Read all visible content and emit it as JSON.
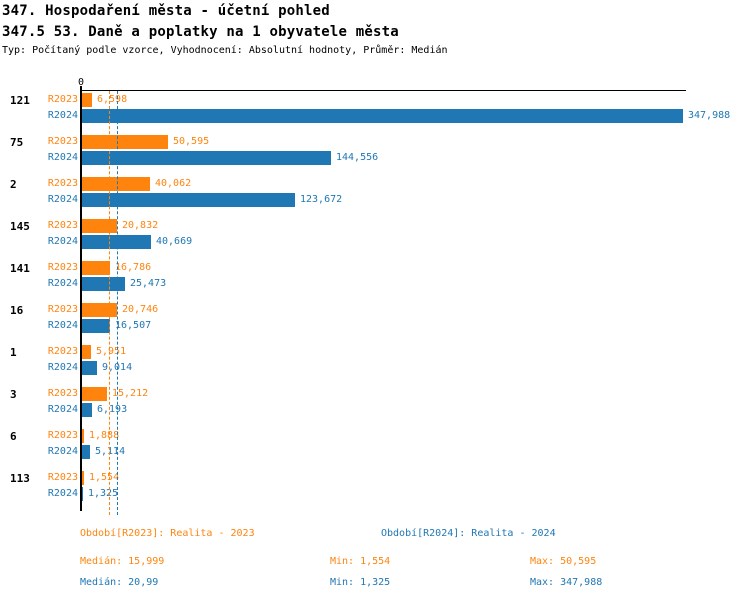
{
  "header": {
    "title1": "347. Hospodaření města - účetní pohled",
    "title2": "347.5 53. Daně a poplatky na 1 obyvatele města",
    "meta": "Typ: Počítaný podle vzorce, Vyhodnocení: Absolutní hodnoty, Průměr: Medián"
  },
  "colors": {
    "r2023": "#ff840e",
    "r2024": "#1f77b4",
    "axis": "#000000"
  },
  "chart_data": {
    "type": "bar",
    "orientation": "horizontal",
    "title": "347.5 53. Daně a poplatky na 1 obyvatele města",
    "zero_label": "0",
    "categories": [
      "121",
      "75",
      "2",
      "145",
      "141",
      "16",
      "1",
      "3",
      "6",
      "113"
    ],
    "series": [
      {
        "name": "R2023",
        "color": "#ff840e",
        "values": [
          6598,
          50595,
          40062,
          20832,
          16786,
          20746,
          5951,
          15212,
          1888,
          1554
        ],
        "labels": [
          "6,598",
          "50,595",
          "40,062",
          "20,832",
          "16,786",
          "20,746",
          "5,951",
          "15,212",
          "1,888",
          "1,554"
        ]
      },
      {
        "name": "R2024",
        "color": "#1f77b4",
        "values": [
          347988,
          144556,
          123672,
          40669,
          25473,
          16507,
          9014,
          6193,
          5114,
          1325
        ],
        "labels": [
          "347,988",
          "144,556",
          "123,672",
          "40,669",
          "25,473",
          "16,507",
          "9,014",
          "6,193",
          "5,114",
          "1,325"
        ]
      }
    ],
    "xlim": [
      0,
      350000
    ],
    "median_lines": [
      {
        "series": "R2023",
        "value": 15999,
        "color": "#ff840e"
      },
      {
        "series": "R2024",
        "value": 20990,
        "color": "#1f77b4"
      }
    ],
    "grid": "off",
    "legend_position": "bottom"
  },
  "footer": {
    "period_r2023": "Období[R2023]: Realita - 2023",
    "period_r2024": "Období[R2024]: Realita - 2024",
    "r2023": {
      "median": "Medián: 15,999",
      "min": "Min: 1,554",
      "max": "Max: 50,595"
    },
    "r2024": {
      "median": "Medián: 20,99",
      "min": "Min: 1,325",
      "max": "Max: 347,988"
    }
  }
}
